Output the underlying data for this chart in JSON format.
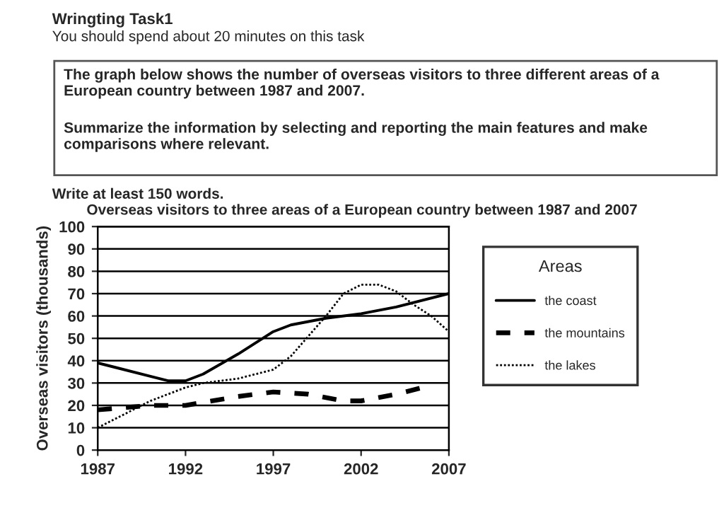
{
  "chart_data": {
    "type": "line",
    "title": "Overseas visitors to three areas of a European country between 1987 and 2007",
    "annotations": [
      "Wringting Task1",
      "You should spend about 20 minutes on this task",
      "The graph below shows the number of overseas visitors to three different areas of a European country between 1987 and 2007.",
      "Summarize the information by selecting and reporting the main features and make comparisons where relevant.",
      "Write at least 150 words."
    ],
    "ylabel": "Overseas visitors (thousands)",
    "legend_title": "Areas",
    "series": [
      {
        "name": "the coast",
        "color": "#000000",
        "line_style": "solid",
        "x": [
          1987,
          1988,
          1990,
          1991,
          1992,
          1993,
          1995,
          1997,
          1998,
          2000,
          2002,
          2004,
          2007
        ],
        "values": [
          39,
          37,
          33,
          31,
          31,
          34,
          43,
          53,
          56,
          59,
          61,
          64,
          70
        ]
      },
      {
        "name": "the mountains",
        "color": "#000000",
        "line_style": "dashed",
        "x": [
          1987,
          1990,
          1992,
          1995,
          1997,
          1999,
          2001,
          2002,
          2004,
          2006
        ],
        "values": [
          18,
          20,
          20,
          24,
          26,
          25,
          22,
          22,
          25,
          29
        ]
      },
      {
        "name": "the lakes",
        "color": "#000000",
        "line_style": "dotted",
        "x": [
          1987,
          1989,
          1990,
          1992,
          1993,
          1995,
          1997,
          1998,
          2000,
          2001,
          2002,
          2003,
          2004,
          2005,
          2006,
          2007
        ],
        "values": [
          10,
          18,
          22,
          28,
          30,
          32,
          36,
          42,
          60,
          70,
          74,
          74,
          71,
          65,
          60,
          53
        ]
      }
    ],
    "xlim": [
      1987,
      2007
    ],
    "xticks": [
      1987,
      1992,
      1997,
      2002,
      2007
    ],
    "ylim": [
      0,
      100
    ],
    "yticks": [
      0,
      10,
      20,
      30,
      40,
      50,
      60,
      70,
      80,
      90,
      100
    ],
    "grid": "y",
    "legend": "right"
  }
}
